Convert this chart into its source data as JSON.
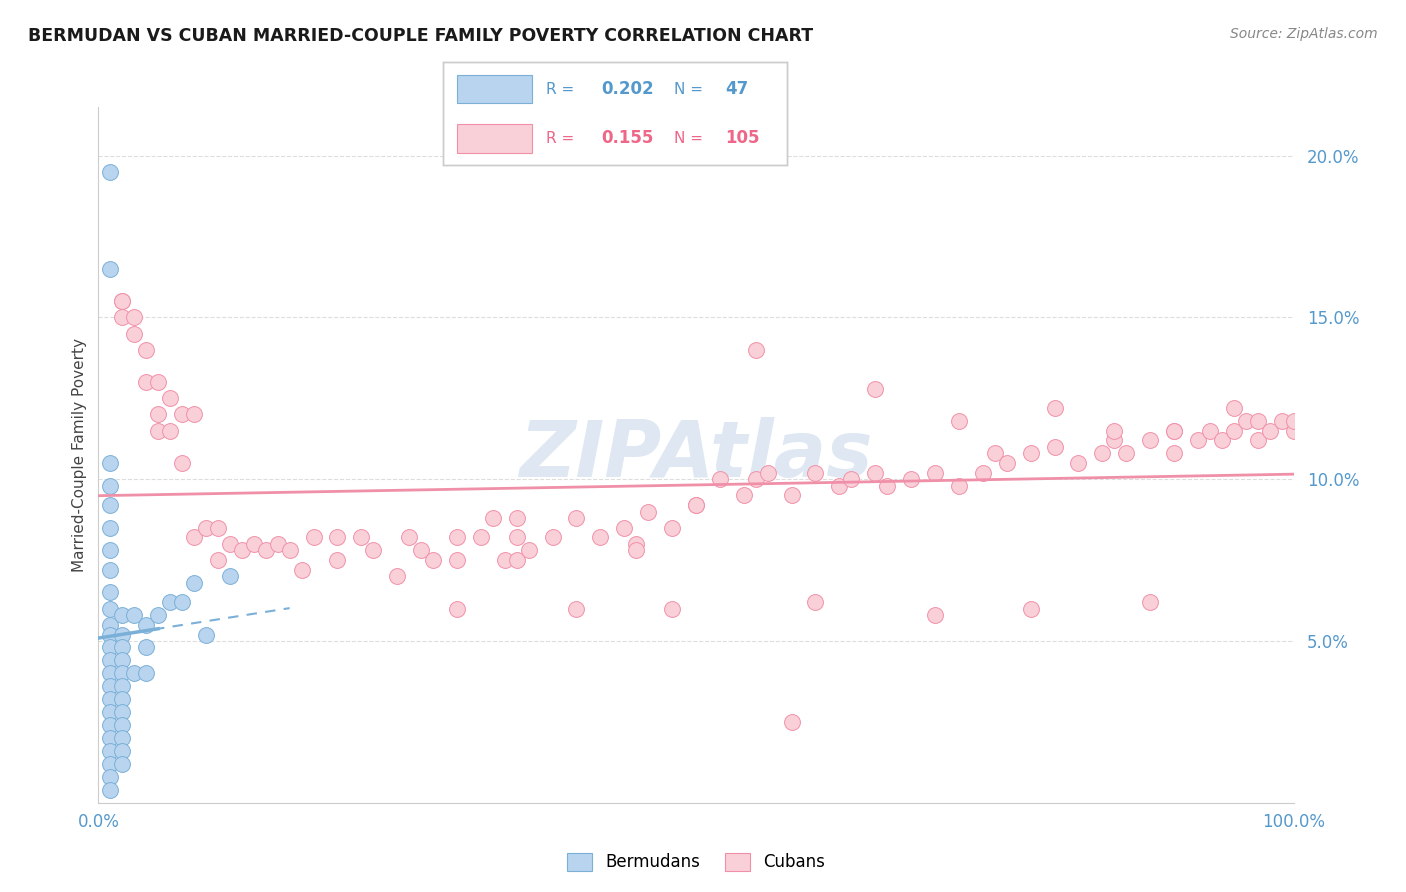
{
  "title": "BERMUDAN VS CUBAN MARRIED-COUPLE FAMILY POVERTY CORRELATION CHART",
  "source": "Source: ZipAtlas.com",
  "ylabel": "Married-Couple Family Poverty",
  "yticks": [
    0.0,
    0.05,
    0.1,
    0.15,
    0.2
  ],
  "ytick_labels": [
    "",
    "5.0%",
    "10.0%",
    "15.0%",
    "20.0%"
  ],
  "xtick_labels": [
    "0.0%",
    "100.0%"
  ],
  "xlim": [
    0.0,
    1.0
  ],
  "ylim": [
    0.0,
    0.215
  ],
  "legend_r_blue": "0.202",
  "legend_n_blue": "47",
  "legend_r_pink": "0.155",
  "legend_n_pink": "105",
  "legend_label_blue": "Bermudans",
  "legend_label_pink": "Cubans",
  "blue_scatter_color": "#b8d4ee",
  "blue_edge_color": "#7ab0d8",
  "pink_scatter_color": "#fad0d8",
  "pink_edge_color": "#f090a8",
  "blue_line_color": "#7ab0d8",
  "pink_line_color": "#f090a8",
  "text_blue_color": "#5599cc",
  "text_pink_color": "#ee6688",
  "watermark": "ZIPAtlas",
  "watermark_color": "#c8d8ea",
  "grid_color": "#dddddd",
  "spine_color": "#cccccc",
  "bermudans_x": [
    0.01,
    0.01,
    0.01,
    0.01,
    0.01,
    0.01,
    0.01,
    0.01,
    0.01,
    0.01,
    0.01,
    0.01,
    0.01,
    0.01,
    0.01,
    0.01,
    0.01,
    0.01,
    0.01,
    0.01,
    0.01,
    0.01,
    0.01,
    0.01,
    0.02,
    0.02,
    0.02,
    0.02,
    0.02,
    0.02,
    0.02,
    0.02,
    0.02,
    0.02,
    0.02,
    0.02,
    0.03,
    0.03,
    0.04,
    0.04,
    0.04,
    0.05,
    0.06,
    0.07,
    0.08,
    0.09,
    0.11
  ],
  "bermudans_y": [
    0.195,
    0.165,
    0.105,
    0.098,
    0.092,
    0.085,
    0.078,
    0.072,
    0.065,
    0.06,
    0.055,
    0.052,
    0.048,
    0.044,
    0.04,
    0.036,
    0.032,
    0.028,
    0.024,
    0.02,
    0.016,
    0.012,
    0.008,
    0.004,
    0.058,
    0.052,
    0.048,
    0.044,
    0.04,
    0.036,
    0.032,
    0.028,
    0.024,
    0.02,
    0.016,
    0.012,
    0.058,
    0.04,
    0.055,
    0.048,
    0.04,
    0.058,
    0.062,
    0.062,
    0.068,
    0.052,
    0.07
  ],
  "cubans_x": [
    0.02,
    0.02,
    0.02,
    0.03,
    0.03,
    0.04,
    0.04,
    0.05,
    0.05,
    0.05,
    0.06,
    0.06,
    0.07,
    0.07,
    0.08,
    0.08,
    0.09,
    0.1,
    0.1,
    0.11,
    0.12,
    0.13,
    0.14,
    0.15,
    0.16,
    0.17,
    0.18,
    0.2,
    0.2,
    0.22,
    0.23,
    0.25,
    0.26,
    0.27,
    0.28,
    0.3,
    0.3,
    0.32,
    0.33,
    0.34,
    0.35,
    0.35,
    0.36,
    0.38,
    0.4,
    0.42,
    0.44,
    0.45,
    0.46,
    0.48,
    0.5,
    0.52,
    0.54,
    0.55,
    0.56,
    0.58,
    0.6,
    0.62,
    0.63,
    0.65,
    0.66,
    0.68,
    0.7,
    0.72,
    0.74,
    0.75,
    0.76,
    0.78,
    0.8,
    0.82,
    0.84,
    0.85,
    0.86,
    0.88,
    0.9,
    0.9,
    0.92,
    0.93,
    0.94,
    0.95,
    0.96,
    0.97,
    0.97,
    0.98,
    0.99,
    1.0,
    1.0,
    0.35,
    0.45,
    0.5,
    0.55,
    0.65,
    0.72,
    0.8,
    0.85,
    0.9,
    0.95,
    0.3,
    0.4,
    0.6,
    0.7,
    0.78,
    0.88,
    0.48,
    0.58
  ],
  "cubans_y": [
    0.155,
    0.155,
    0.15,
    0.15,
    0.145,
    0.14,
    0.13,
    0.13,
    0.12,
    0.115,
    0.125,
    0.115,
    0.12,
    0.105,
    0.12,
    0.082,
    0.085,
    0.085,
    0.075,
    0.08,
    0.078,
    0.08,
    0.078,
    0.08,
    0.078,
    0.072,
    0.082,
    0.075,
    0.082,
    0.082,
    0.078,
    0.07,
    0.082,
    0.078,
    0.075,
    0.082,
    0.075,
    0.082,
    0.088,
    0.075,
    0.082,
    0.075,
    0.078,
    0.082,
    0.088,
    0.082,
    0.085,
    0.08,
    0.09,
    0.085,
    0.092,
    0.1,
    0.095,
    0.1,
    0.102,
    0.095,
    0.102,
    0.098,
    0.1,
    0.102,
    0.098,
    0.1,
    0.102,
    0.098,
    0.102,
    0.108,
    0.105,
    0.108,
    0.11,
    0.105,
    0.108,
    0.112,
    0.108,
    0.112,
    0.108,
    0.115,
    0.112,
    0.115,
    0.112,
    0.115,
    0.118,
    0.112,
    0.118,
    0.115,
    0.118,
    0.115,
    0.118,
    0.088,
    0.078,
    0.092,
    0.14,
    0.128,
    0.118,
    0.122,
    0.115,
    0.115,
    0.122,
    0.06,
    0.06,
    0.062,
    0.058,
    0.06,
    0.062,
    0.06,
    0.025
  ]
}
